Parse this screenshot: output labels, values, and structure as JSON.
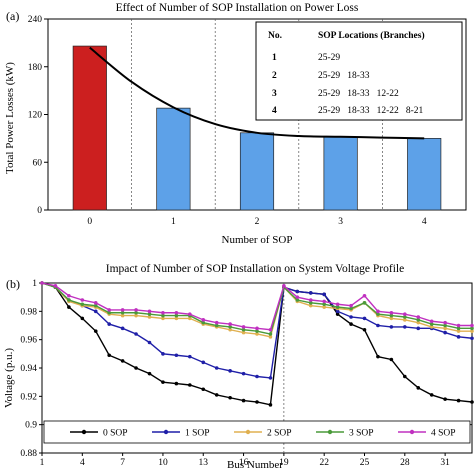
{
  "chart_data": [
    {
      "type": "bar",
      "panel_label": "(a)",
      "title": "Effect of Number of SOP Installation on Power Loss",
      "xlabel": "Number of SOP",
      "ylabel": "Total Power Losses (kW)",
      "ylim": [
        0,
        240
      ],
      "yticks": [
        "0",
        "60",
        "120",
        "180",
        "240"
      ],
      "categories": [
        "0",
        "1",
        "2",
        "3",
        "4"
      ],
      "values": [
        206,
        128,
        97,
        92,
        90
      ],
      "bar_colors": [
        "#cc1f1f",
        "#5da1e8",
        "#5da1e8",
        "#5da1e8",
        "#5da1e8"
      ],
      "trend_line": {
        "x": [
          0,
          0.5,
          1,
          1.5,
          2,
          2.5,
          3,
          3.5,
          4
        ],
        "y": [
          204,
          161,
          129,
          108,
          97,
          93,
          92,
          91,
          90
        ]
      },
      "grid": "vertical dashed",
      "table": {
        "headers": [
          "No.",
          "SOP Locations (Branches)"
        ],
        "rows": [
          [
            "1",
            "25-29"
          ],
          [
            "2",
            "25-29   18-33"
          ],
          [
            "3",
            "25-29   18-33   12-22"
          ],
          [
            "4",
            "25-29   18-33   12-22   8-21"
          ]
        ]
      }
    },
    {
      "type": "line",
      "panel_label": "(b)",
      "title": "Impact of Number of  SOP Installation on System Voltage Profile",
      "xlabel": "Bus Number",
      "ylabel": "Voltage (p.u.)",
      "ylim": [
        0.88,
        1.0
      ],
      "yticks": [
        "0.88",
        "0.9",
        "0.92",
        "0.94",
        "0.96",
        "0.98",
        "1"
      ],
      "xticks": [
        "1",
        "4",
        "7",
        "10",
        "13",
        "16",
        "19",
        "22",
        "25",
        "28",
        "31"
      ],
      "x": [
        1,
        2,
        3,
        4,
        5,
        6,
        7,
        8,
        9,
        10,
        11,
        12,
        13,
        14,
        15,
        16,
        17,
        18,
        19,
        20,
        21,
        22,
        23,
        24,
        25,
        26,
        27,
        28,
        29,
        30,
        31,
        32,
        33
      ],
      "legend_position": "bottom",
      "series": [
        {
          "name": "0 SOP",
          "color": "#000000",
          "values": [
            1.0,
            0.997,
            0.983,
            0.975,
            0.966,
            0.949,
            0.945,
            0.94,
            0.936,
            0.93,
            0.929,
            0.928,
            0.925,
            0.921,
            0.919,
            0.917,
            0.916,
            0.914,
            0.997,
            0.994,
            0.993,
            0.992,
            0.978,
            0.971,
            0.967,
            0.948,
            0.946,
            0.934,
            0.926,
            0.921,
            0.918,
            0.917,
            0.916
          ]
        },
        {
          "name": "1 SOP",
          "color": "#1f1fa8",
          "values": [
            1.0,
            0.997,
            0.988,
            0.984,
            0.98,
            0.971,
            0.968,
            0.964,
            0.958,
            0.95,
            0.949,
            0.948,
            0.944,
            0.94,
            0.938,
            0.936,
            0.934,
            0.933,
            0.997,
            0.994,
            0.993,
            0.992,
            0.98,
            0.976,
            0.975,
            0.97,
            0.969,
            0.969,
            0.968,
            0.968,
            0.965,
            0.962,
            0.961
          ]
        },
        {
          "name": "2 SOP",
          "color": "#e0b050",
          "values": [
            1.0,
            0.997,
            0.987,
            0.984,
            0.983,
            0.978,
            0.977,
            0.977,
            0.976,
            0.975,
            0.975,
            0.975,
            0.971,
            0.969,
            0.967,
            0.965,
            0.964,
            0.962,
            0.997,
            0.987,
            0.984,
            0.983,
            0.982,
            0.981,
            0.986,
            0.977,
            0.975,
            0.974,
            0.972,
            0.969,
            0.968,
            0.966,
            0.966
          ]
        },
        {
          "name": "3 SOP",
          "color": "#4a9a3a",
          "values": [
            1.0,
            0.997,
            0.988,
            0.985,
            0.984,
            0.979,
            0.979,
            0.979,
            0.978,
            0.977,
            0.977,
            0.977,
            0.972,
            0.97,
            0.969,
            0.967,
            0.966,
            0.964,
            0.997,
            0.988,
            0.986,
            0.985,
            0.983,
            0.982,
            0.986,
            0.978,
            0.977,
            0.976,
            0.974,
            0.971,
            0.97,
            0.968,
            0.968
          ]
        },
        {
          "name": "4 SOP",
          "color": "#c030c0",
          "values": [
            1.0,
            0.998,
            0.991,
            0.988,
            0.986,
            0.981,
            0.981,
            0.981,
            0.98,
            0.979,
            0.979,
            0.978,
            0.974,
            0.972,
            0.971,
            0.969,
            0.968,
            0.967,
            0.998,
            0.99,
            0.988,
            0.987,
            0.985,
            0.984,
            0.991,
            0.98,
            0.979,
            0.978,
            0.976,
            0.973,
            0.972,
            0.97,
            0.97
          ]
        }
      ]
    }
  ]
}
